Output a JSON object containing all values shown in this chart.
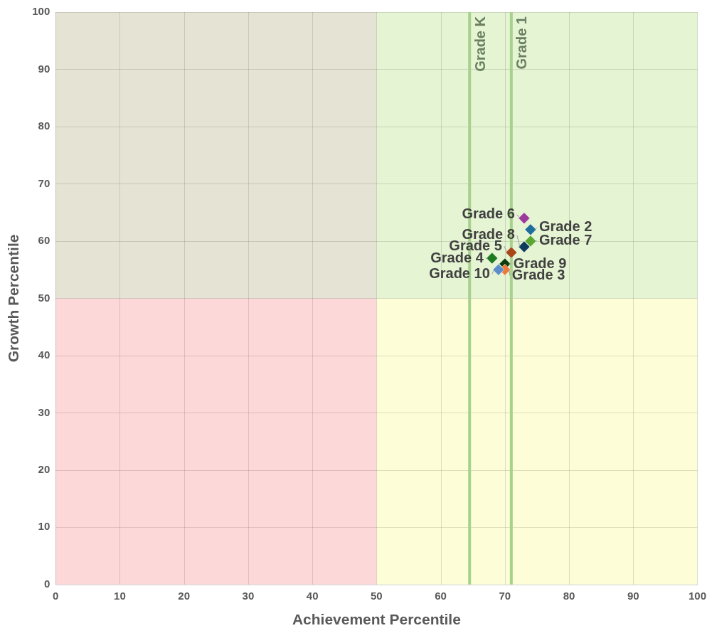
{
  "chart_data": {
    "type": "scatter",
    "xlabel": "Achievement Percentile",
    "ylabel": "Growth Percentile",
    "xlim": [
      0,
      100
    ],
    "ylim": [
      0,
      100
    ],
    "xticks": [
      0,
      10,
      20,
      30,
      40,
      50,
      60,
      70,
      80,
      90,
      100
    ],
    "yticks": [
      0,
      10,
      20,
      30,
      40,
      50,
      60,
      70,
      80,
      90,
      100
    ],
    "grid": true,
    "legend": false,
    "marker": "diamond",
    "bands": [
      {
        "axis": "x",
        "from": 50,
        "to": 100,
        "color": "#fdfdd8"
      },
      {
        "axis": "x",
        "from": 0,
        "to": 50,
        "color": "#fcd8d8"
      },
      {
        "axis": "y",
        "from": 50,
        "to": 100,
        "color": "#d2ecd0"
      }
    ],
    "ref_lines": [
      {
        "axis": "x",
        "value": 64.5,
        "label": "Grade K",
        "color": "#a9d18e"
      },
      {
        "axis": "x",
        "value": 71,
        "label": "Grade 1",
        "color": "#a9d18e"
      }
    ],
    "series": [
      {
        "name": "Grade 2",
        "color": "#1f6f9a",
        "x": [
          74
        ],
        "values": [
          62
        ]
      },
      {
        "name": "Grade 10",
        "color": "#5b8fc9",
        "x": [
          69
        ],
        "values": [
          55
        ]
      },
      {
        "name": "Grade 3",
        "color": "#ee7a3a",
        "x": [
          70
        ],
        "values": [
          55
        ]
      },
      {
        "name": "Grade 4",
        "color": "#1e7a1e",
        "x": [
          68
        ],
        "values": [
          57
        ]
      },
      {
        "name": "Grade 5",
        "color": "#a84817",
        "x": [
          71
        ],
        "values": [
          58
        ]
      },
      {
        "name": "Grade 6",
        "color": "#9c3a9c",
        "x": [
          73
        ],
        "values": [
          64
        ]
      },
      {
        "name": "Grade 7",
        "color": "#5aa832",
        "x": [
          74
        ],
        "values": [
          60
        ]
      },
      {
        "name": "Grade 8",
        "color": "#0e3c5a",
        "x": [
          73
        ],
        "values": [
          59
        ]
      },
      {
        "name": "Grade 9",
        "color": "#0d3d0d",
        "x": [
          70
        ],
        "values": [
          56
        ]
      }
    ]
  }
}
